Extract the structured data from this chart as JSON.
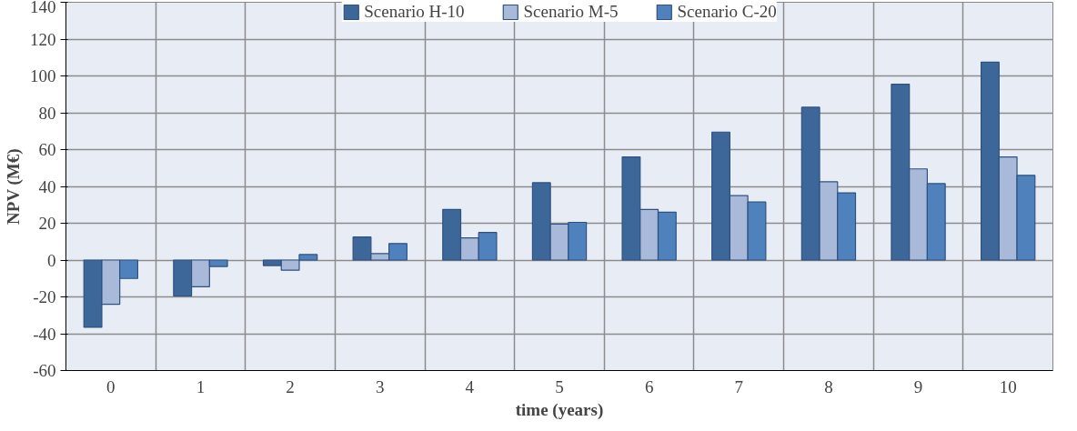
{
  "chart_data": {
    "type": "bar",
    "xlabel": "time (years)",
    "ylabel": "NPV (M€)",
    "categories": [
      "0",
      "1",
      "2",
      "3",
      "4",
      "5",
      "6",
      "7",
      "8",
      "9",
      "10"
    ],
    "series": [
      {
        "name": "Scenario H-10",
        "color": "#3d6699",
        "values": [
          -36.5,
          -19.5,
          -3,
          12.5,
          27.5,
          42,
          56,
          69.5,
          83,
          95.5,
          107.5
        ]
      },
      {
        "name": "Scenario M-5",
        "color": "#a9b9d9",
        "values": [
          -24,
          -14.5,
          -5.5,
          3.5,
          12,
          19.5,
          27.5,
          35,
          42.5,
          49.5,
          56
        ]
      },
      {
        "name": "Scenario C-20",
        "color": "#4f81bd",
        "values": [
          -10,
          -3.5,
          3,
          9,
          15,
          20.5,
          26,
          31.5,
          36.5,
          41.5,
          46
        ]
      }
    ],
    "ylim": [
      -60,
      140
    ],
    "yticks": [
      -60,
      -40,
      -20,
      0,
      20,
      40,
      60,
      80,
      100,
      120,
      140
    ],
    "grid": true,
    "legend": "top"
  }
}
